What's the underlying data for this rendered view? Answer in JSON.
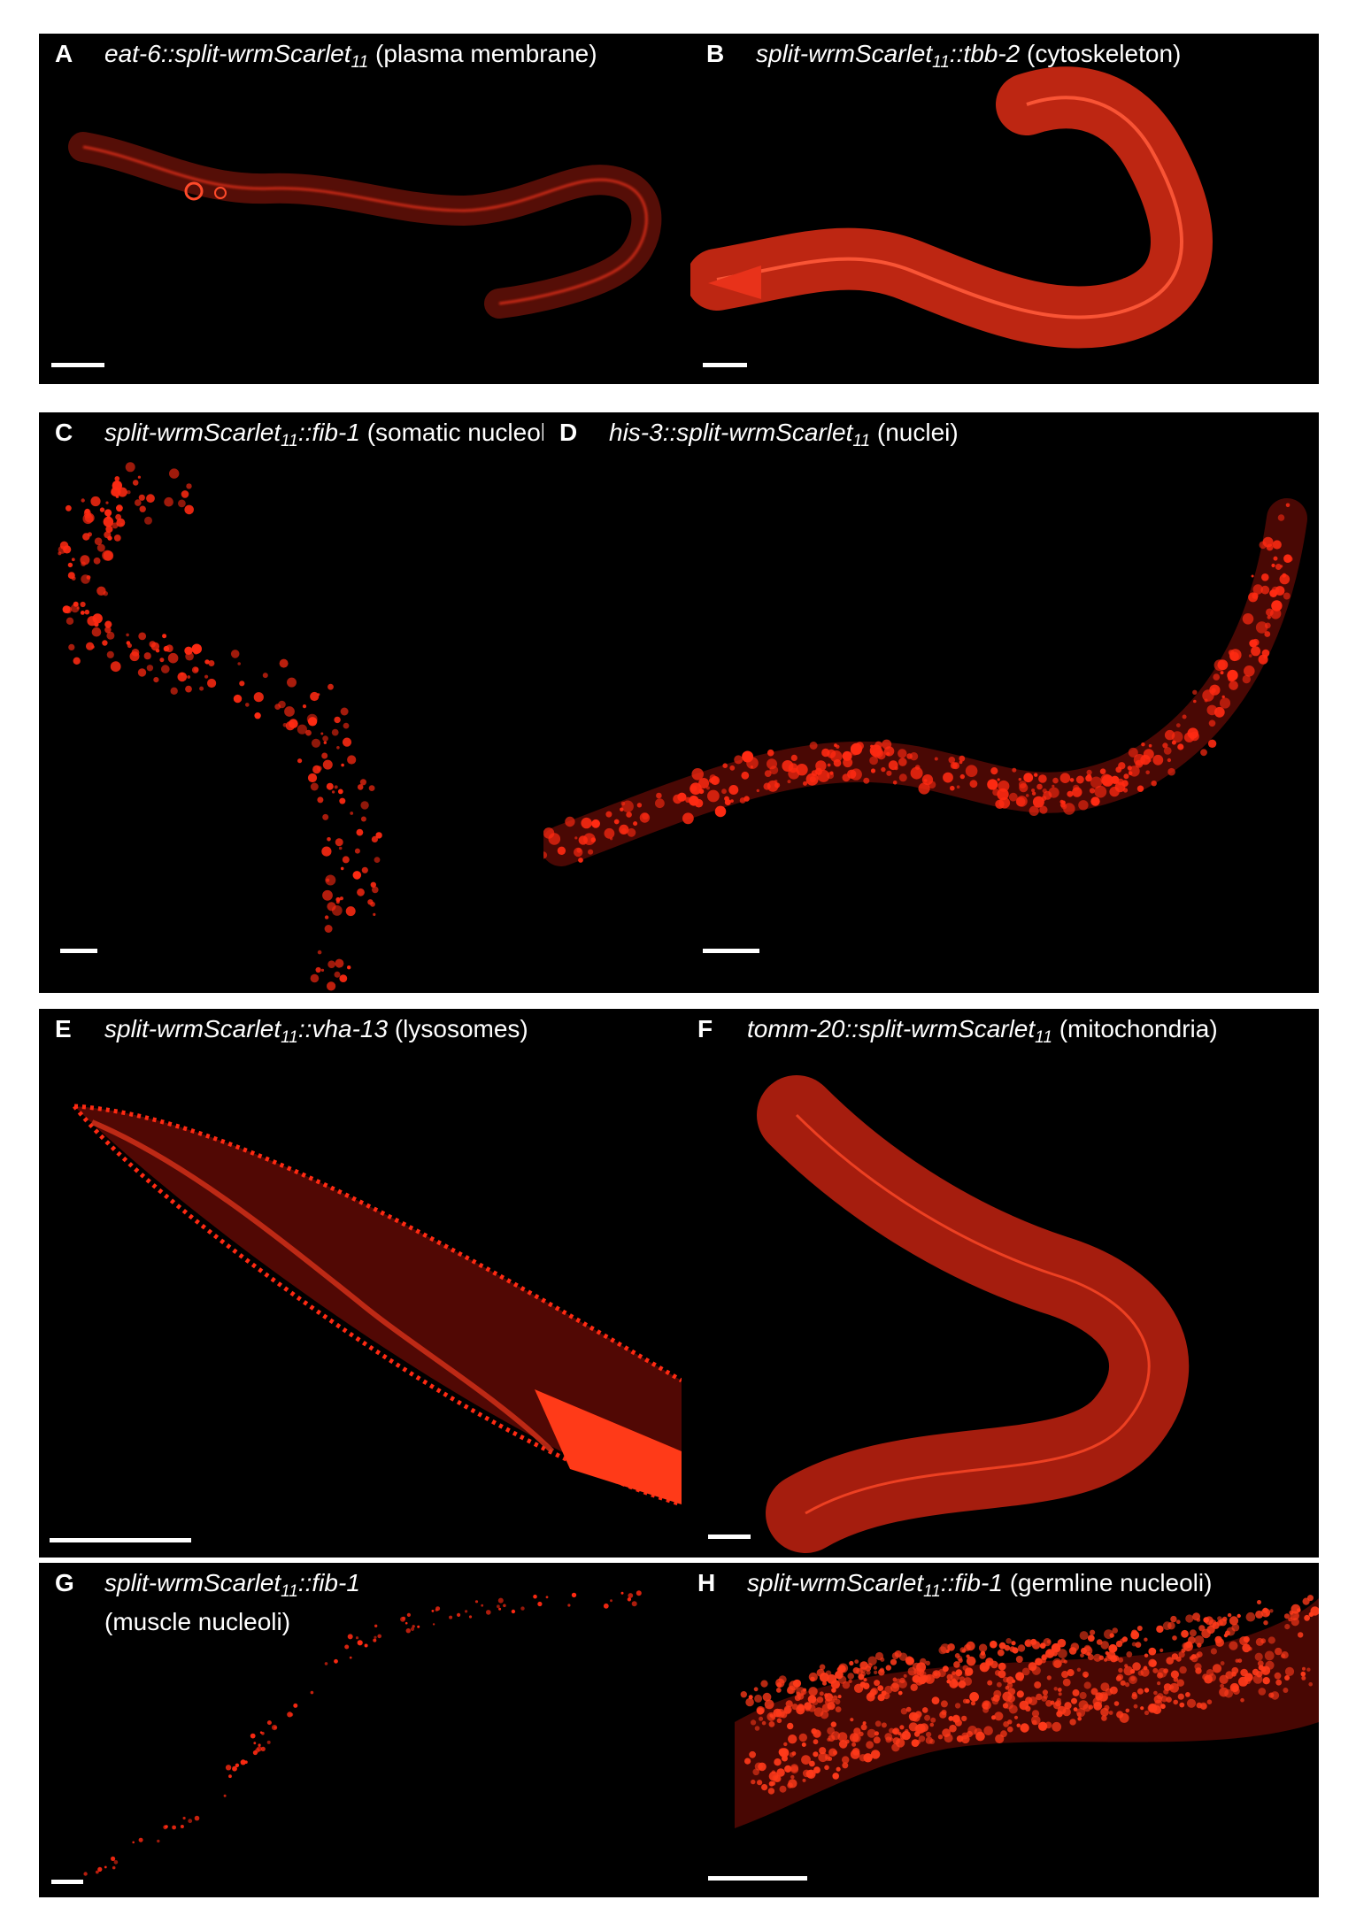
{
  "figure": {
    "background": "#000000",
    "signal_color": "#ff2a12",
    "panels": [
      {
        "id": "A",
        "letter": "A",
        "genotype_pre": "eat-6::split-wrmScarlet",
        "genotype_sub": "11",
        "genotype_post": "",
        "description": "(plasma membrane)",
        "description_line2": ""
      },
      {
        "id": "B",
        "letter": "B",
        "genotype_pre": "split-wrmScarlet",
        "genotype_sub": "11",
        "genotype_post": "::tbb-2",
        "description": "(cytoskeleton)",
        "description_line2": ""
      },
      {
        "id": "C",
        "letter": "C",
        "genotype_pre": "split-wrmScarlet",
        "genotype_sub": "11",
        "genotype_post": "::fib-1",
        "description": "(somatic nucleoli)",
        "description_line2": ""
      },
      {
        "id": "D",
        "letter": "D",
        "genotype_pre": "his-3::split-wrmScarlet",
        "genotype_sub": "11",
        "genotype_post": "",
        "description": "(nuclei)",
        "description_line2": ""
      },
      {
        "id": "E",
        "letter": "E",
        "genotype_pre": "split-wrmScarlet",
        "genotype_sub": "11",
        "genotype_post": "::vha-13",
        "description": "(lysosomes)",
        "description_line2": ""
      },
      {
        "id": "F",
        "letter": "F",
        "genotype_pre": "tomm-20::split-wrmScarlet",
        "genotype_sub": "11",
        "genotype_post": "",
        "description": "(mitochondria)",
        "description_line2": ""
      },
      {
        "id": "G",
        "letter": "G",
        "genotype_pre": "split-wrmScarlet",
        "genotype_sub": "11",
        "genotype_post": "::fib-1",
        "description": "",
        "description_line2": "(muscle nucleoli)"
      },
      {
        "id": "H",
        "letter": "H",
        "genotype_pre": "split-wrmScarlet",
        "genotype_sub": "11",
        "genotype_post": "::fib-1",
        "description": "(germline nucleoli)",
        "description_line2": ""
      }
    ]
  }
}
